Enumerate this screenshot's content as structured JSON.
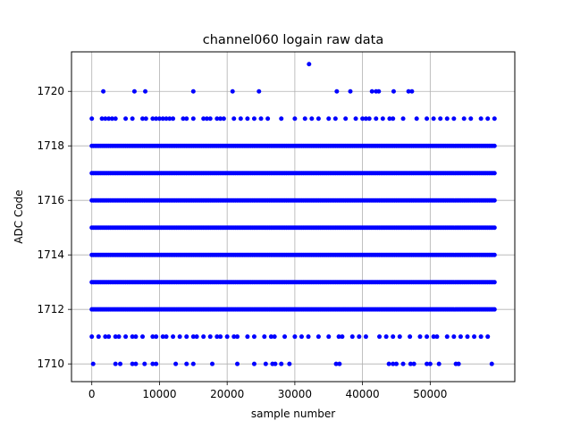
{
  "chart_data": {
    "type": "scatter",
    "title": "channel060 logain raw data",
    "xlabel": "sample number",
    "ylabel": "ADC Code",
    "xlim": [
      -3000,
      62500
    ],
    "ylim": [
      1709.35,
      1721.45
    ],
    "xticks": [
      0,
      10000,
      20000,
      30000,
      40000,
      50000
    ],
    "yticks": [
      1710,
      1712,
      1714,
      1716,
      1718,
      1720
    ],
    "grid": true,
    "legend": "none",
    "marker_color": "#0000ff",
    "n_samples": 60000,
    "dense_levels": [
      1712,
      1713,
      1714,
      1715,
      1716,
      1717,
      1718
    ],
    "sparse_levels": [
      {
        "y": 1719,
        "x": [
          0,
          1500,
          2000,
          2500,
          3000,
          3500,
          5000,
          6000,
          7500,
          8000,
          9000,
          9500,
          10000,
          10500,
          11000,
          11500,
          12000,
          13500,
          14000,
          15000,
          16500,
          17000,
          17500,
          18500,
          19000,
          19500,
          21000,
          22000,
          23000,
          24000,
          25000,
          26000,
          28000,
          30000,
          31500,
          32500,
          33500,
          35000,
          36000,
          37500,
          39000,
          40000,
          40500,
          41000,
          42000,
          43000,
          44000,
          44500,
          46000,
          48000,
          49500,
          50500,
          51500,
          52500,
          53500,
          55000,
          56000,
          57500,
          58500,
          59500
        ]
      },
      {
        "y": 1711,
        "x": [
          0,
          1000,
          2000,
          2500,
          3500,
          4000,
          5000,
          6000,
          6500,
          7500,
          9000,
          9500,
          10500,
          11000,
          12000,
          13000,
          14000,
          15000,
          15500,
          16500,
          17500,
          18500,
          19000,
          20000,
          21000,
          21500,
          23000,
          24000,
          25500,
          26500,
          27000,
          28500,
          30000,
          31000,
          32000,
          33500,
          35000,
          36500,
          37000,
          38500,
          39500,
          40500,
          42500,
          43500,
          44500,
          45500,
          47000,
          48500,
          49500,
          50500,
          51000,
          52500,
          53500,
          54500,
          55500,
          56500,
          57500,
          58500
        ]
      },
      {
        "y": 1710,
        "x": [
          200,
          3500,
          4200,
          6000,
          6500,
          7800,
          9000,
          9500,
          12400,
          14000,
          15000,
          17800,
          21500,
          24000,
          25700,
          26700,
          27100,
          28000,
          29200,
          36100,
          36600,
          43900,
          44500,
          45000,
          46000,
          47100,
          47600,
          49500,
          50000,
          51300,
          53800,
          54200,
          59100
        ]
      },
      {
        "y": 1720,
        "x": [
          1700,
          6300,
          7900,
          15000,
          20800,
          24700,
          36200,
          38200,
          41400,
          42000,
          42400,
          44600,
          46800,
          47300
        ]
      },
      {
        "y": 1721,
        "x": [
          32100
        ]
      }
    ]
  }
}
